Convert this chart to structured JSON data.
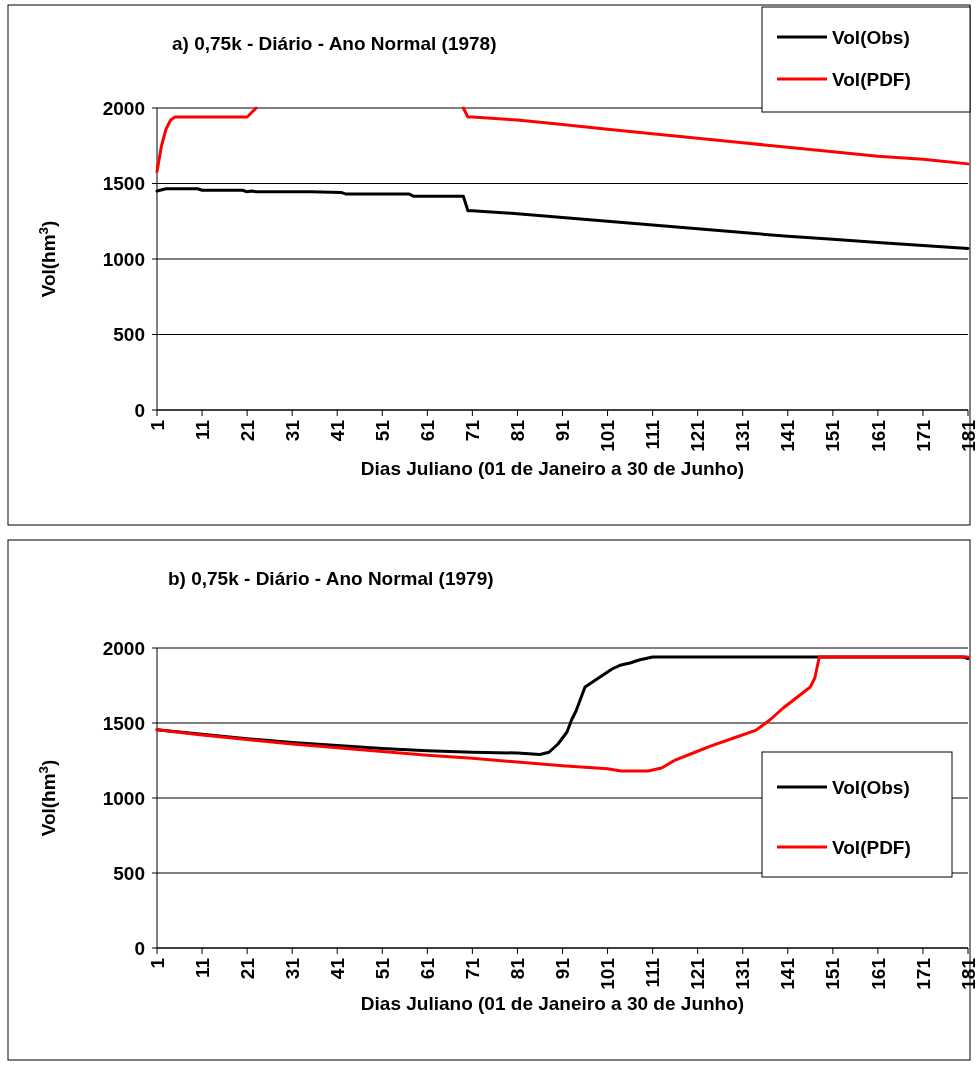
{
  "chart_data": [
    {
      "type": "line",
      "title": "a) 0,75k - Diário - Ano Normal (1978)",
      "xlabel": "Dias Juliano (01 de Janeiro a 30 de Junho)",
      "ylabel": "Vol(hm$^{3}$)",
      "xlim": [
        1,
        181
      ],
      "xticks": [
        1,
        11,
        21,
        31,
        41,
        51,
        61,
        71,
        81,
        91,
        101,
        111,
        121,
        131,
        141,
        151,
        161,
        171,
        181
      ],
      "ylim": [
        0,
        2000
      ],
      "yticks": [
        0,
        500,
        1000,
        1500,
        2000
      ],
      "grid": "y",
      "legend": "top right",
      "marker": "none",
      "line_style": "solid",
      "series": [
        {
          "name": "Vol(Obs)",
          "color": "#000000",
          "x": [
            1,
            3,
            10,
            11,
            20,
            21,
            22,
            23,
            35,
            42,
            43,
            57,
            58,
            69,
            70,
            71,
            81,
            91,
            101,
            111,
            121,
            131,
            141,
            151,
            161,
            171,
            181
          ],
          "values": [
            1450,
            1465,
            1465,
            1455,
            1455,
            1445,
            1450,
            1445,
            1445,
            1440,
            1430,
            1430,
            1415,
            1415,
            1320,
            1320,
            1300,
            1275,
            1250,
            1225,
            1200,
            1175,
            1150,
            1130,
            1110,
            1090,
            1070
          ]
        },
        {
          "name": "Vol(PDF)",
          "color": "#ff0000",
          "x": [
            1,
            2,
            3,
            4,
            5,
            21,
            23,
            24,
            68,
            69,
            70,
            71,
            81,
            91,
            101,
            111,
            121,
            131,
            141,
            151,
            161,
            171,
            181
          ],
          "values": [
            1580,
            1750,
            1860,
            1920,
            1940,
            1940,
            2000,
            null,
            null,
            2000,
            1940,
            1940,
            1920,
            1890,
            1860,
            1830,
            1800,
            1770,
            1740,
            1710,
            1680,
            1660,
            1630
          ]
        }
      ]
    },
    {
      "type": "line",
      "title": "b) 0,75k - Diário - Ano Normal (1979)",
      "xlabel": "Dias Juliano (01 de Janeiro a 30 de Junho)",
      "ylabel": "Vol(hm$^{3}$)",
      "xlim": [
        1,
        181
      ],
      "xticks": [
        1,
        11,
        21,
        31,
        41,
        51,
        61,
        71,
        81,
        91,
        101,
        111,
        121,
        131,
        141,
        151,
        161,
        171,
        181
      ],
      "ylim": [
        0,
        2000
      ],
      "yticks": [
        0,
        500,
        1000,
        1500,
        2000
      ],
      "grid": "y",
      "legend": "right",
      "marker": "none",
      "line_style": "solid",
      "series": [
        {
          "name": "Vol(Obs)",
          "color": "#000000",
          "x": [
            1,
            11,
            21,
            31,
            41,
            51,
            61,
            71,
            81,
            86,
            88,
            90,
            92,
            93,
            94,
            96,
            98,
            100,
            102,
            104,
            106,
            108,
            111,
            180,
            181
          ],
          "values": [
            1455,
            1425,
            1395,
            1370,
            1350,
            1330,
            1315,
            1305,
            1300,
            1290,
            1305,
            1360,
            1440,
            1520,
            1580,
            1740,
            1780,
            1820,
            1860,
            1887,
            1900,
            1920,
            1940,
            1940,
            1930
          ]
        },
        {
          "name": "Vol(PDF)",
          "color": "#ff0000",
          "x": [
            1,
            11,
            21,
            31,
            41,
            51,
            61,
            71,
            81,
            91,
            96,
            101,
            104,
            110,
            113,
            116,
            120,
            124,
            129,
            134,
            137,
            140,
            143,
            146,
            147,
            148,
            181
          ],
          "values": [
            1455,
            1420,
            1390,
            1360,
            1335,
            1310,
            1285,
            1265,
            1240,
            1215,
            1205,
            1195,
            1180,
            1180,
            1200,
            1253,
            1300,
            1347,
            1400,
            1453,
            1520,
            1600,
            1670,
            1740,
            1800,
            1940,
            1940
          ]
        }
      ]
    }
  ]
}
